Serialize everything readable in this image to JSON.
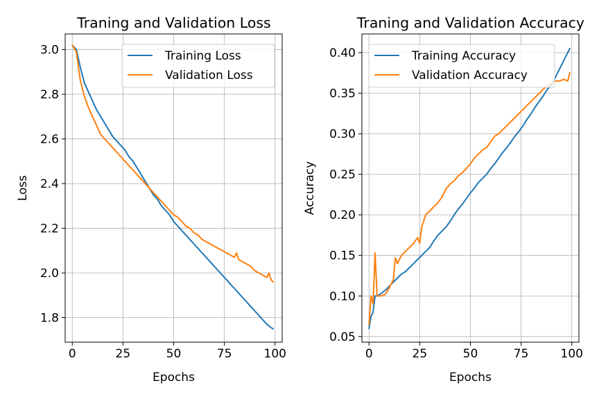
{
  "chart_data": [
    {
      "type": "line",
      "title": "Traning and Validation Loss",
      "xlabel": "Epochs",
      "ylabel": "Loss",
      "xlim": [
        -3.5,
        103.5
      ],
      "ylim": [
        1.69,
        3.07
      ],
      "xticks": [
        0,
        25,
        50,
        75,
        100
      ],
      "xtick_labels": [
        "0",
        "25",
        "50",
        "75",
        "100"
      ],
      "yticks": [
        1.8,
        2.0,
        2.2,
        2.4,
        2.6,
        2.8,
        3.0
      ],
      "ytick_labels": [
        "1.8",
        "2.0",
        "2.2",
        "2.4",
        "2.6",
        "2.8",
        "3.0"
      ],
      "grid": true,
      "legend_position": "upper right",
      "series": [
        {
          "name": "Training Loss",
          "color": "#1f77b4",
          "x": [
            0,
            2,
            4,
            6,
            8,
            10,
            12,
            14,
            16,
            18,
            20,
            22,
            24,
            26,
            28,
            30,
            32,
            34,
            36,
            38,
            40,
            42,
            44,
            46,
            48,
            50,
            52,
            54,
            56,
            58,
            60,
            62,
            64,
            66,
            68,
            70,
            72,
            74,
            76,
            78,
            80,
            82,
            84,
            86,
            88,
            90,
            92,
            94,
            96,
            98,
            99
          ],
          "y": [
            3.02,
            3.0,
            2.92,
            2.85,
            2.81,
            2.77,
            2.73,
            2.7,
            2.67,
            2.64,
            2.61,
            2.59,
            2.57,
            2.55,
            2.52,
            2.5,
            2.47,
            2.44,
            2.41,
            2.38,
            2.35,
            2.33,
            2.3,
            2.28,
            2.26,
            2.23,
            2.21,
            2.19,
            2.17,
            2.15,
            2.13,
            2.11,
            2.09,
            2.07,
            2.05,
            2.03,
            2.01,
            1.99,
            1.97,
            1.95,
            1.93,
            1.91,
            1.89,
            1.87,
            1.85,
            1.83,
            1.81,
            1.79,
            1.77,
            1.755,
            1.75
          ]
        },
        {
          "name": "Validation Loss",
          "color": "#ff7f0e",
          "x": [
            0,
            2,
            4,
            6,
            8,
            10,
            12,
            14,
            16,
            18,
            20,
            22,
            24,
            26,
            28,
            30,
            32,
            34,
            36,
            38,
            40,
            42,
            44,
            46,
            48,
            50,
            52,
            54,
            56,
            58,
            60,
            62,
            64,
            66,
            68,
            70,
            72,
            74,
            76,
            78,
            80,
            81,
            82,
            84,
            86,
            88,
            90,
            92,
            94,
            96,
            97,
            98,
            99
          ],
          "y": [
            3.02,
            2.99,
            2.86,
            2.79,
            2.74,
            2.7,
            2.66,
            2.62,
            2.6,
            2.58,
            2.56,
            2.54,
            2.52,
            2.5,
            2.48,
            2.46,
            2.44,
            2.42,
            2.4,
            2.38,
            2.36,
            2.34,
            2.32,
            2.3,
            2.28,
            2.26,
            2.25,
            2.23,
            2.21,
            2.2,
            2.18,
            2.17,
            2.15,
            2.14,
            2.13,
            2.12,
            2.11,
            2.1,
            2.09,
            2.08,
            2.07,
            2.09,
            2.06,
            2.05,
            2.04,
            2.03,
            2.01,
            2.0,
            1.99,
            1.98,
            2.0,
            1.97,
            1.96
          ]
        }
      ]
    },
    {
      "type": "line",
      "title": "Traning and Validation Accuracy",
      "xlabel": "Epochs",
      "ylabel": "Accuracy",
      "xlim": [
        -3.5,
        103.5
      ],
      "ylim": [
        0.043,
        0.423
      ],
      "xticks": [
        0,
        25,
        50,
        75,
        100
      ],
      "xtick_labels": [
        "0",
        "25",
        "50",
        "75",
        "100"
      ],
      "yticks": [
        0.05,
        0.1,
        0.15,
        0.2,
        0.25,
        0.3,
        0.35,
        0.4
      ],
      "ytick_labels": [
        "0.05",
        "0.10",
        "0.15",
        "0.20",
        "0.25",
        "0.30",
        "0.35",
        "0.40"
      ],
      "grid": true,
      "legend_position": "upper left",
      "series": [
        {
          "name": "Training Accuracy",
          "color": "#1f77b4",
          "x": [
            0,
            1,
            2,
            3,
            4,
            6,
            8,
            10,
            12,
            14,
            16,
            18,
            20,
            22,
            24,
            26,
            28,
            30,
            32,
            34,
            36,
            38,
            40,
            42,
            44,
            46,
            48,
            50,
            52,
            54,
            56,
            58,
            60,
            62,
            64,
            66,
            68,
            70,
            72,
            74,
            76,
            78,
            80,
            82,
            84,
            86,
            88,
            90,
            92,
            94,
            96,
            98,
            99
          ],
          "y": [
            0.06,
            0.075,
            0.08,
            0.1,
            0.1,
            0.103,
            0.107,
            0.112,
            0.117,
            0.122,
            0.127,
            0.13,
            0.135,
            0.14,
            0.145,
            0.15,
            0.155,
            0.16,
            0.168,
            0.175,
            0.18,
            0.185,
            0.192,
            0.2,
            0.207,
            0.213,
            0.22,
            0.227,
            0.233,
            0.24,
            0.245,
            0.25,
            0.257,
            0.263,
            0.27,
            0.277,
            0.283,
            0.29,
            0.297,
            0.303,
            0.31,
            0.318,
            0.325,
            0.333,
            0.34,
            0.347,
            0.355,
            0.36,
            0.37,
            0.38,
            0.39,
            0.4,
            0.405
          ]
        },
        {
          "name": "Validation Accuracy",
          "color": "#ff7f0e",
          "x": [
            0,
            1,
            2,
            3,
            4,
            6,
            8,
            10,
            12,
            13,
            14,
            16,
            18,
            20,
            22,
            24,
            25,
            26,
            28,
            30,
            32,
            34,
            36,
            38,
            40,
            42,
            44,
            46,
            48,
            50,
            52,
            54,
            56,
            58,
            60,
            62,
            64,
            66,
            68,
            70,
            72,
            74,
            76,
            78,
            80,
            82,
            84,
            86,
            88,
            90,
            92,
            94,
            96,
            98,
            99
          ],
          "y": [
            0.065,
            0.1,
            0.09,
            0.153,
            0.1,
            0.1,
            0.102,
            0.11,
            0.12,
            0.147,
            0.14,
            0.15,
            0.155,
            0.16,
            0.165,
            0.172,
            0.165,
            0.185,
            0.2,
            0.205,
            0.21,
            0.215,
            0.222,
            0.232,
            0.238,
            0.242,
            0.248,
            0.252,
            0.257,
            0.263,
            0.27,
            0.275,
            0.28,
            0.283,
            0.29,
            0.297,
            0.3,
            0.305,
            0.31,
            0.315,
            0.32,
            0.325,
            0.33,
            0.335,
            0.34,
            0.345,
            0.35,
            0.355,
            0.36,
            0.362,
            0.365,
            0.365,
            0.367,
            0.365,
            0.375
          ]
        }
      ]
    }
  ]
}
